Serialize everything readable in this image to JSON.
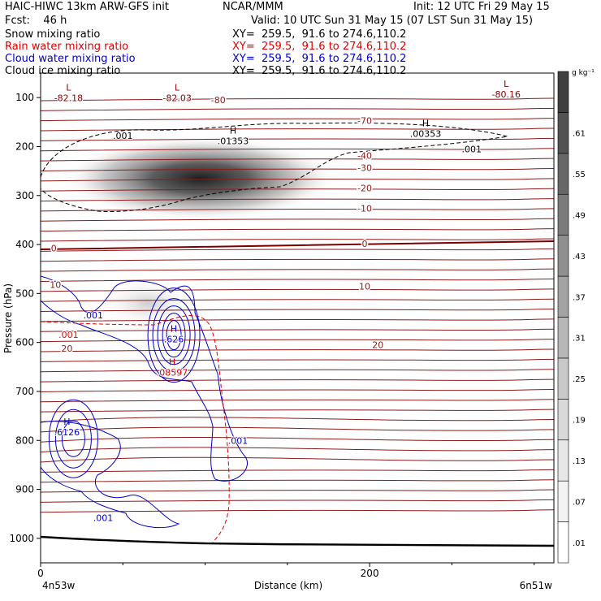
{
  "header": {
    "model": "HAIC-HIWC 13km ARW-GFS init",
    "org": "NCAR/MMM",
    "init": "Init: 12 UTC Fri 29 May 15",
    "fcst": "Fcst:    46 h",
    "valid": "Valid: 10 UTC Sun 31 May 15 (07 LST Sun 31 May 15)",
    "fields": [
      {
        "name": "Snow mixing ratio",
        "xy": "XY=  259.5,  91.6 to 274.6,110.2",
        "color": "#000000"
      },
      {
        "name": "Rain water mixing ratio",
        "xy": "XY=  259.5,  91.6 to 274.6,110.2",
        "color": "#e00000"
      },
      {
        "name": "Cloud water mixing ratio",
        "xy": "XY=  259.5,  91.6 to 274.6,110.2",
        "color": "#0000cc"
      },
      {
        "name": "Cloud ice mixing ratio",
        "xy": "XY=  259.5,  91.6 to 274.6,110.2",
        "color": "#000000"
      }
    ]
  },
  "chart_data": {
    "type": "heatmap",
    "title": "",
    "xlabel": "Distance (km)",
    "ylabel": "Pressure (hPa)",
    "xlim": [
      0,
      312
    ],
    "ylim": [
      50,
      1050
    ],
    "x_ticks": [
      0,
      200
    ],
    "y_ticks": [
      100,
      200,
      300,
      400,
      500,
      600,
      700,
      800,
      900,
      1000
    ],
    "x_endpoint_labels": {
      "left": "4n53w",
      "right": "6n51w"
    },
    "colorbar": {
      "unit": "g kg⁻¹",
      "levels": [
        ".01",
        ".07",
        ".13",
        ".19",
        ".25",
        ".31",
        ".37",
        ".43",
        ".49",
        ".55",
        ".61"
      ],
      "levels_num": [
        0.01,
        0.07,
        0.13,
        0.19,
        0.25,
        0.31,
        0.37,
        0.43,
        0.49,
        0.55,
        0.61
      ],
      "colors": [
        "#ffffff",
        "#f3f3f3",
        "#e7e7e7",
        "#d9d9d9",
        "#c9c9c9",
        "#b7b7b7",
        "#a3a3a3",
        "#8f8f8f",
        "#7b7b7b",
        "#676767",
        "#535353",
        "#3f3f3f"
      ]
    },
    "snow_maxima": [
      {
        "center_km": 97,
        "center_hpa": 265,
        "peak": 0.64
      },
      {
        "center_km": 65,
        "center_hpa": 520,
        "peak": 0.08
      }
    ],
    "temperature_isotherms": [
      {
        "label": "-80",
        "label_km": 108,
        "label_hpa": 105
      },
      {
        "label": "-70",
        "label_km": 197,
        "label_hpa": 147
      },
      {
        "label": "-40",
        "label_km": 197,
        "label_hpa": 218
      },
      {
        "label": "-30",
        "label_km": 197,
        "label_hpa": 243
      },
      {
        "label": "-20",
        "label_km": 197,
        "label_hpa": 285
      },
      {
        "label": "-10",
        "label_km": 197,
        "label_hpa": 326
      },
      {
        "label": "0",
        "label_km": 197,
        "label_hpa": 398
      },
      {
        "label": "0",
        "label_km": 8,
        "label_hpa": 407
      },
      {
        "label": "10",
        "label_km": 197,
        "label_hpa": 485
      },
      {
        "label": "10",
        "label_km": 9,
        "label_hpa": 482
      },
      {
        "label": "20",
        "label_km": 205,
        "label_hpa": 605
      },
      {
        "label": "20",
        "label_km": 16,
        "label_hpa": 612
      }
    ],
    "extrema": [
      {
        "kind": "L",
        "value": "-82.18",
        "km": 17,
        "hpa": 97,
        "color": "#8b0000"
      },
      {
        "kind": "L",
        "value": "-82.03",
        "km": 83,
        "hpa": 97,
        "color": "#8b0000"
      },
      {
        "kind": "L",
        "value": "-80.16",
        "km": 283,
        "hpa": 90,
        "color": "#8b0000"
      },
      {
        "kind": "H",
        "value": ".01353",
        "km": 117,
        "hpa": 185,
        "color": "#000000"
      },
      {
        "kind": "H",
        "value": ".00353",
        "km": 234,
        "hpa": 170,
        "color": "#000000"
      },
      {
        "kind": "H",
        "value": ".626",
        "km": 81,
        "hpa": 590,
        "color": "#0000cc"
      },
      {
        "kind": "H",
        "value": ".6126",
        "km": 16,
        "hpa": 780,
        "color": "#0000cc"
      },
      {
        "kind": "H",
        "value": ".08597",
        "km": 80,
        "hpa": 658,
        "color": "#e00000"
      }
    ],
    "contour_labels": [
      {
        "text": ".001",
        "km": 50,
        "hpa": 178,
        "color": "#000000"
      },
      {
        "text": ".001",
        "km": 262,
        "hpa": 205,
        "color": "#000000"
      },
      {
        "text": ".001",
        "km": 32,
        "hpa": 544,
        "color": "#0000cc"
      },
      {
        "text": ".001",
        "km": 120,
        "hpa": 800,
        "color": "#0000cc"
      },
      {
        "text": ".001",
        "km": 38,
        "hpa": 958,
        "color": "#0000cc"
      },
      {
        "text": ".001",
        "km": 17,
        "hpa": 584,
        "color": "#e00000"
      }
    ]
  }
}
